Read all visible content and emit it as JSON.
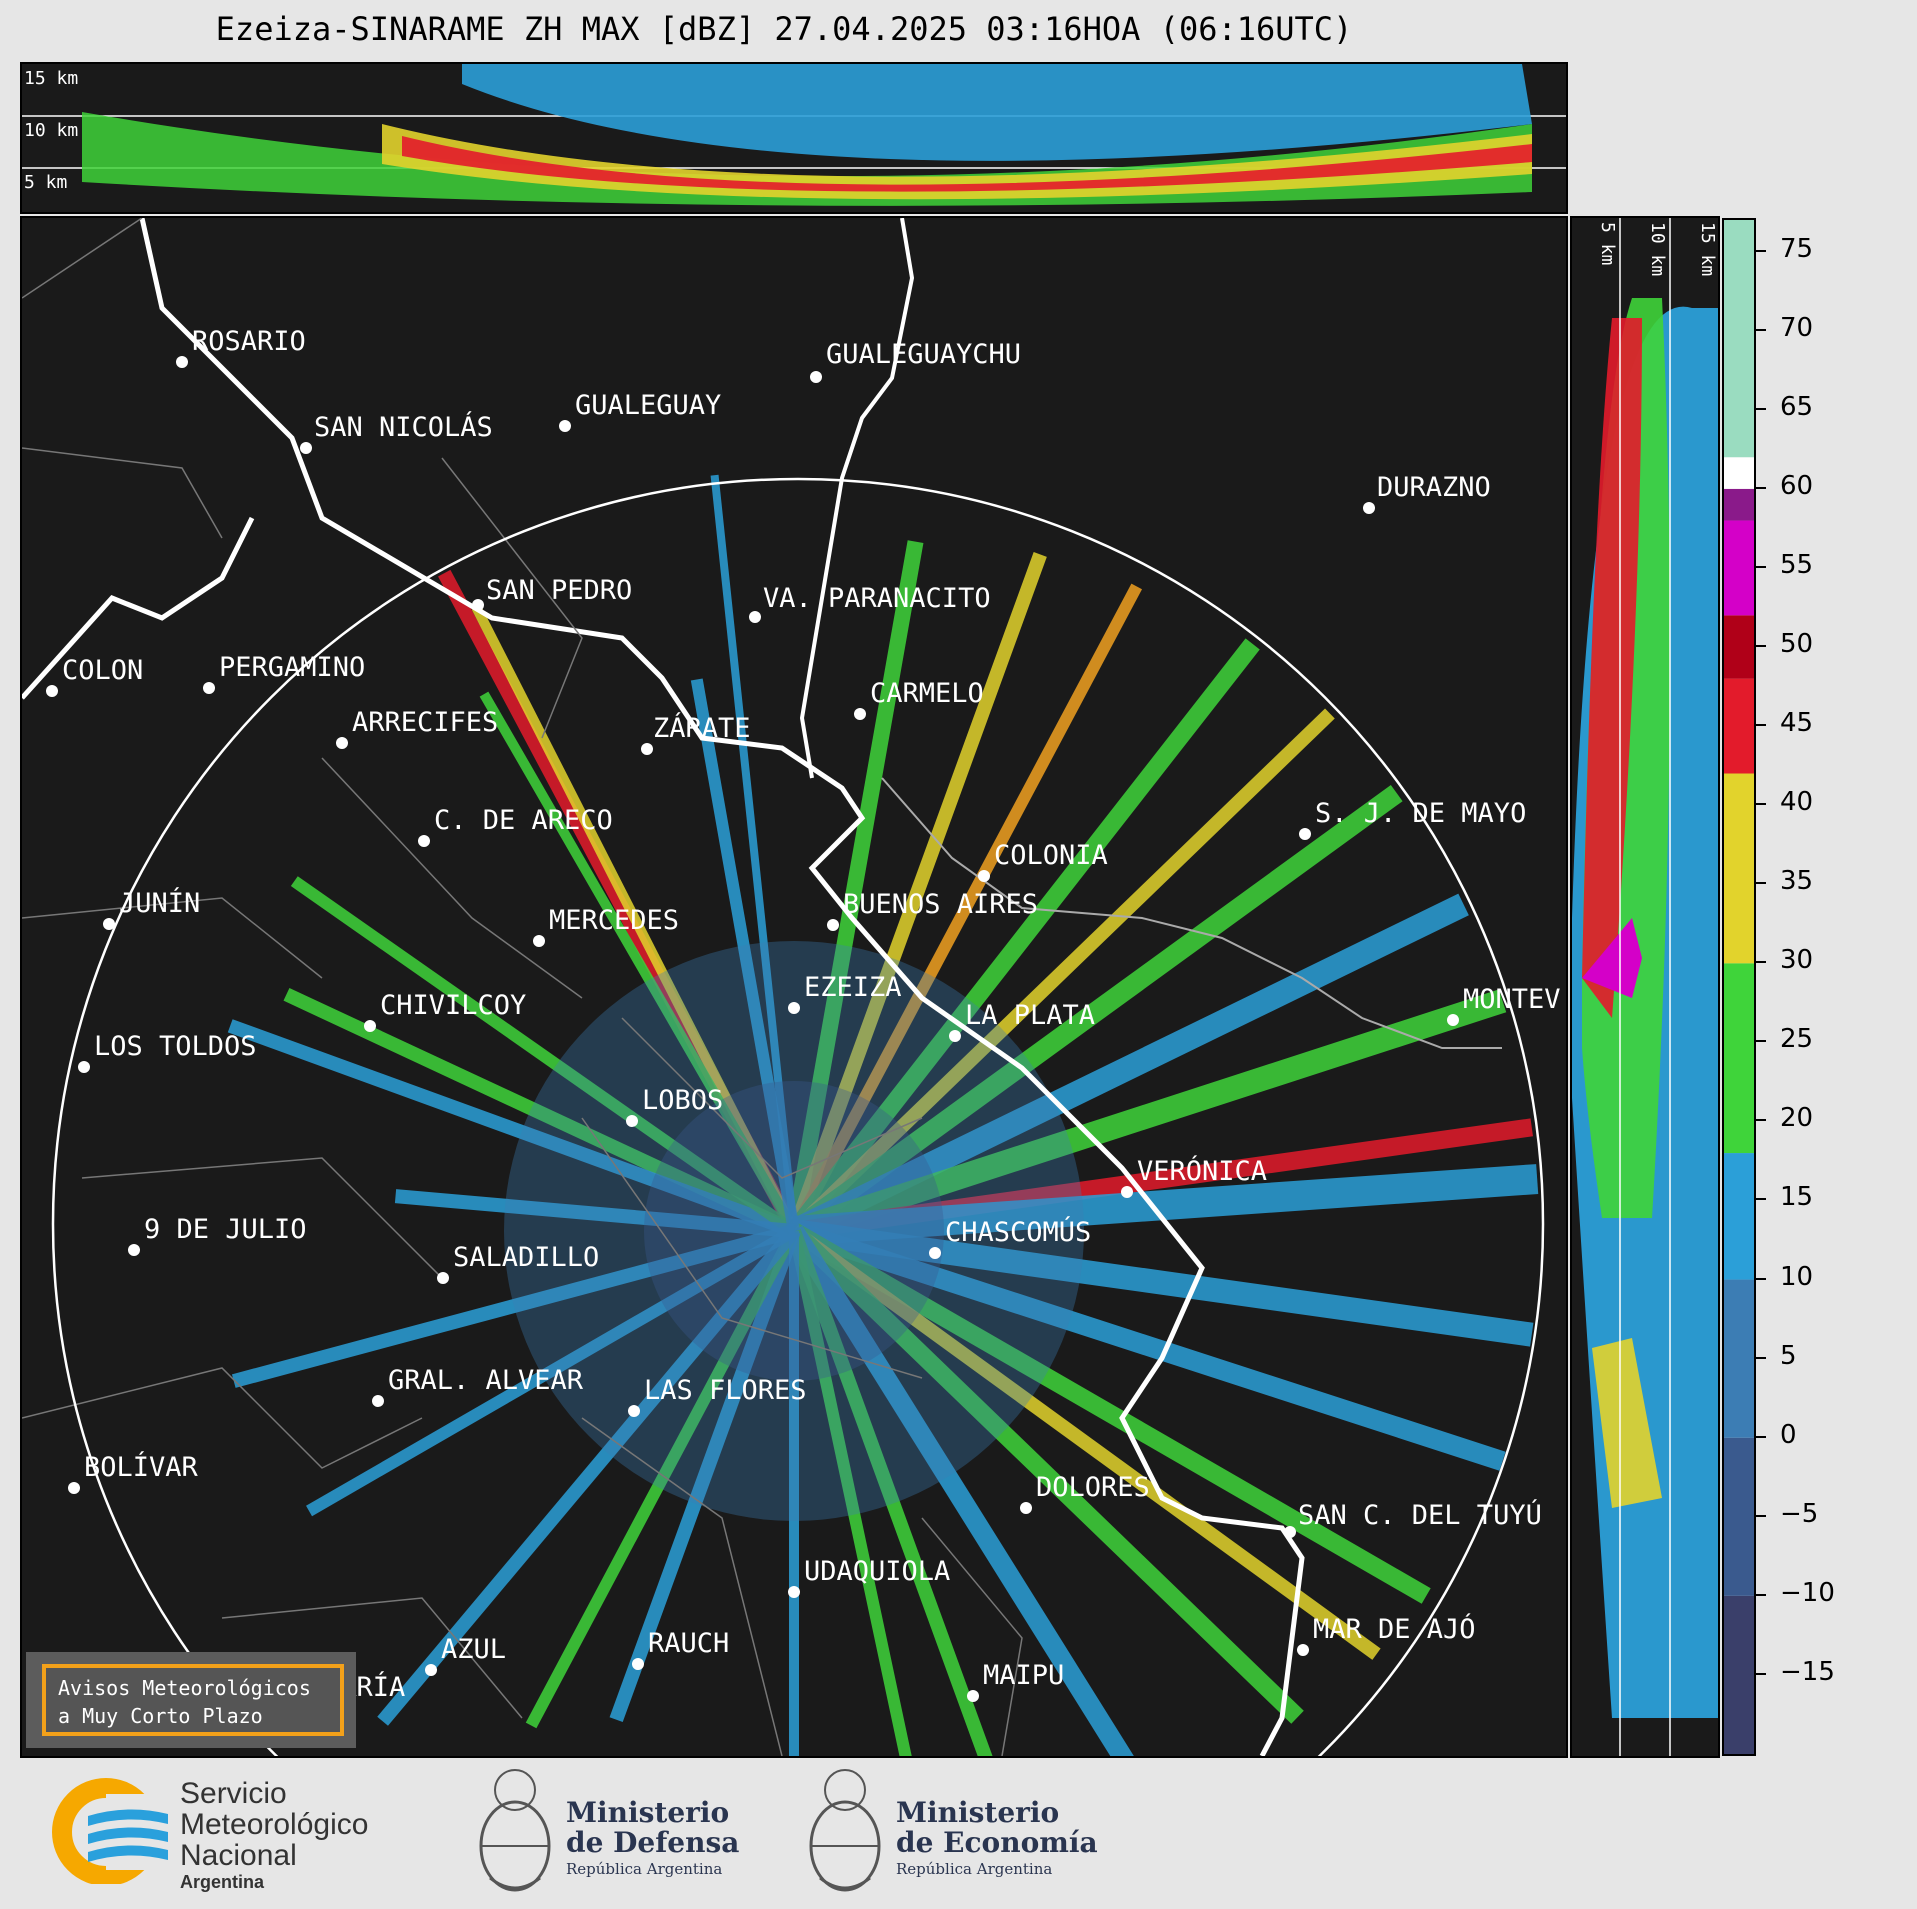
{
  "title": "Ezeiza-SINARAME ZH MAX [dBZ] 27.04.2025 03:16HOA (06:16UTC)",
  "top_panel": {
    "height_labels": [
      "15 km",
      "10 km",
      "5 km"
    ]
  },
  "side_panel": {
    "height_labels": [
      "5 km",
      "10 km",
      "15 km"
    ]
  },
  "colorbar": {
    "ticks": [
      "75",
      "70",
      "65",
      "60",
      "55",
      "50",
      "45",
      "40",
      "35",
      "30",
      "25",
      "20",
      "15",
      "10",
      "5",
      "0",
      "−5",
      "−10",
      "−15"
    ],
    "range": [
      -20,
      77
    ],
    "colors": [
      {
        "from": -20,
        "to": -10,
        "color": "#3a3f6a"
      },
      {
        "from": -10,
        "to": 0,
        "color": "#3a5a8e"
      },
      {
        "from": 0,
        "to": 10,
        "color": "#3c7db4"
      },
      {
        "from": 10,
        "to": 18,
        "color": "#2b9fd8"
      },
      {
        "from": 18,
        "to": 30,
        "color": "#3fd43a"
      },
      {
        "from": 30,
        "to": 42,
        "color": "#e2d32c"
      },
      {
        "from": 42,
        "to": 48,
        "color": "#e31b2b"
      },
      {
        "from": 48,
        "to": 52,
        "color": "#b00018"
      },
      {
        "from": 52,
        "to": 58,
        "color": "#d400c8"
      },
      {
        "from": 58,
        "to": 60,
        "color": "#8a1a8a"
      },
      {
        "from": 60,
        "to": 62,
        "color": "#ffffff"
      },
      {
        "from": 62,
        "to": 77,
        "color": "#9adcc0"
      }
    ]
  },
  "cities": [
    {
      "name": "ROSARIO"
    },
    {
      "name": "GUALEGUAYCHU"
    },
    {
      "name": "GUALEGUAY"
    },
    {
      "name": "SAN NICOLÁS"
    },
    {
      "name": "DURAZNO"
    },
    {
      "name": "SAN PEDRO"
    },
    {
      "name": "VA. PARANACITO"
    },
    {
      "name": "COLON"
    },
    {
      "name": "PERGAMINO"
    },
    {
      "name": "CARMELO"
    },
    {
      "name": "ARRECIFES"
    },
    {
      "name": "ZÁRATE"
    },
    {
      "name": "C. DE ARECO"
    },
    {
      "name": "S. J. DE MAYO"
    },
    {
      "name": "COLONIA"
    },
    {
      "name": "JUNÍN"
    },
    {
      "name": "BUENOS AIRES"
    },
    {
      "name": "MERCEDES"
    },
    {
      "name": "EZEIZA"
    },
    {
      "name": "MONTEV"
    },
    {
      "name": "CHIVILCOY"
    },
    {
      "name": "LA PLATA"
    },
    {
      "name": "LOS TOLDOS"
    },
    {
      "name": "LOBOS"
    },
    {
      "name": "VERÓNICA"
    },
    {
      "name": "9 DE JULIO"
    },
    {
      "name": "CHASCOMÚS"
    },
    {
      "name": "SALADILLO"
    },
    {
      "name": "GRAL. ALVEAR"
    },
    {
      "name": "LAS FLORES"
    },
    {
      "name": "BOLÍVAR"
    },
    {
      "name": "DOLORES"
    },
    {
      "name": "SAN C. DEL TUYÚ"
    },
    {
      "name": "UDAQUIOLA"
    },
    {
      "name": "MAR DE AJÓ"
    },
    {
      "name": "AZUL"
    },
    {
      "name": "RAUCH"
    },
    {
      "name": "OLAVARRÍA"
    },
    {
      "name": "MAIPU"
    }
  ],
  "aviso": {
    "line1": "Avisos Meteorológicos",
    "line2": "a Muy Corto Plazo"
  },
  "footer": {
    "smn": {
      "line1": "Servicio",
      "line2": "Meteorológico",
      "line3": "Nacional",
      "line4": "Argentina"
    },
    "defensa": {
      "line1": "Ministerio",
      "line2": "de Defensa",
      "line3": "República Argentina"
    },
    "economia": {
      "line1": "Ministerio",
      "line2": "de Economía",
      "line3": "República Argentina"
    }
  }
}
